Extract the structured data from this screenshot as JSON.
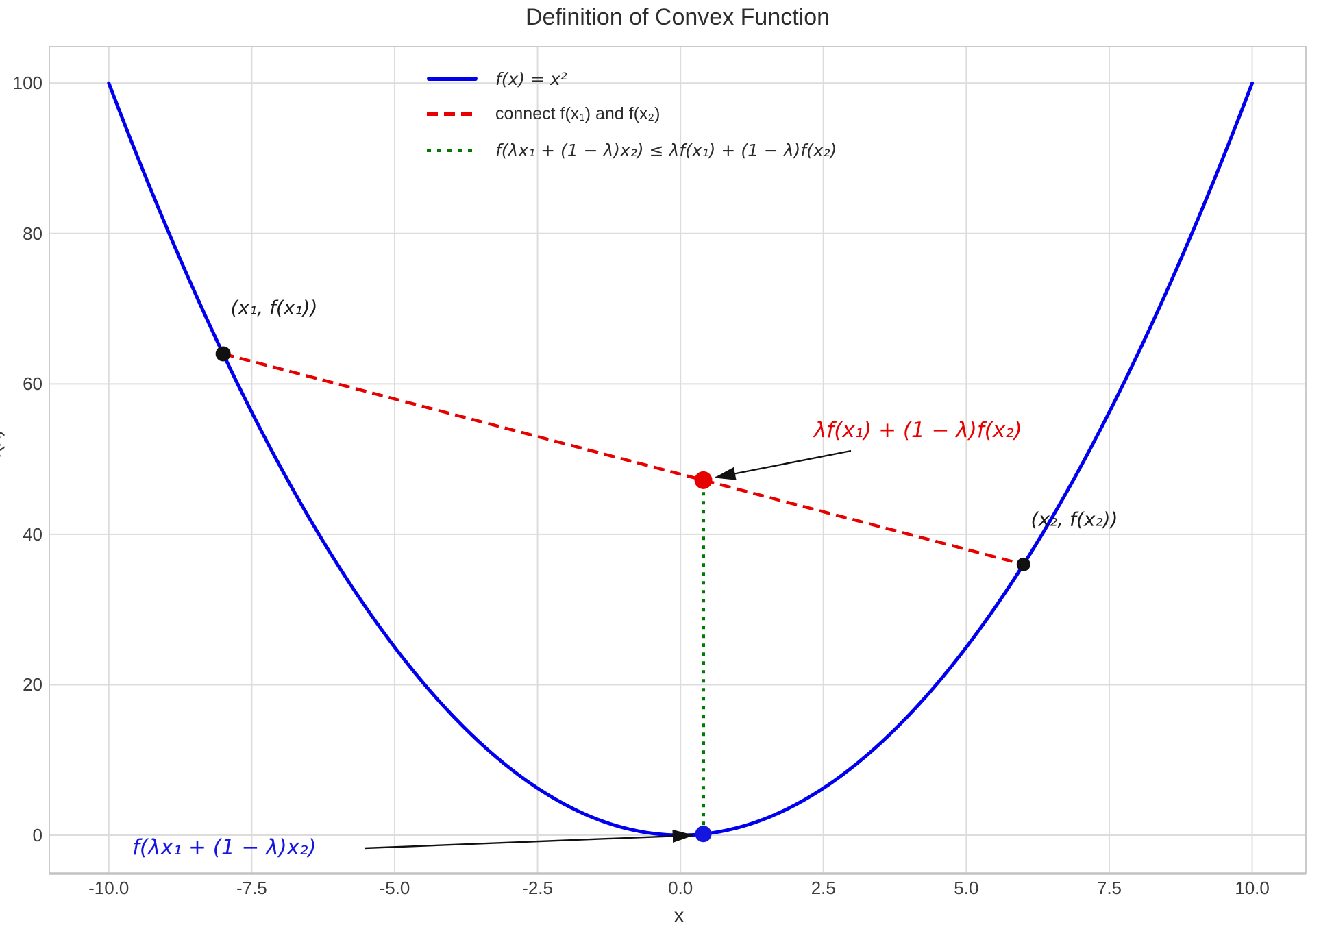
{
  "chart_data": {
    "type": "line",
    "title": "Definition of Convex Function",
    "xlabel": "x",
    "ylabel": "f(x)",
    "xlim": [
      -11.04,
      10.94
    ],
    "ylim": [
      -5.1,
      104.85
    ],
    "grid": true,
    "legend": {
      "position": "upper center",
      "frame": false
    },
    "x_ticks": [
      -10,
      -7.5,
      -5,
      -2.5,
      0,
      2.5,
      5,
      7.5,
      10
    ],
    "x_tick_labels": [
      "-10.0",
      "-7.5",
      "-5.0",
      "-2.5",
      "0.0",
      "2.5",
      "5.0",
      "7.5",
      "10.0"
    ],
    "y_ticks": [
      0,
      20,
      40,
      60,
      80,
      100
    ],
    "y_tick_labels": [
      "0",
      "20",
      "40",
      "60",
      "80",
      "100"
    ],
    "series": [
      {
        "name": "convex-curve",
        "label": "f(x) = x²",
        "style": "solid",
        "color": "#0000ee",
        "width": 5,
        "formula": "x²",
        "x_start": -10,
        "x_end": 10
      },
      {
        "name": "chord",
        "label": "connect f(x₁) and f(x₂)",
        "style": "dashed",
        "color": "#e60000",
        "width": 4.5,
        "points": [
          [
            -8,
            64
          ],
          [
            6,
            36
          ]
        ]
      },
      {
        "name": "inequality-segment",
        "label": "f(λx₁ + (1 − λ)x₂) ≤ λf(x₁) + (1 − λ)f(x₂)",
        "style": "dotted",
        "color": "#007a00",
        "width": 5,
        "points": [
          [
            0.4,
            0.16
          ],
          [
            0.4,
            47.2
          ]
        ]
      }
    ],
    "points": [
      {
        "name": "point-x1",
        "x": -8,
        "y": 64,
        "color": "#111111",
        "radius": 11
      },
      {
        "name": "point-x2",
        "x": 6,
        "y": 36,
        "color": "#111111",
        "radius": 10
      },
      {
        "name": "point-weighted-value",
        "x": 0.4,
        "y": 47.2,
        "color": "#e60000",
        "radius": 13
      },
      {
        "name": "point-function-value",
        "x": 0.4,
        "y": 0.16,
        "color": "#1515e0",
        "radius": 12
      }
    ],
    "annotations": [
      {
        "name": "label-x1",
        "text": "(x₁, f(x₁))",
        "color": "#1c1c1c"
      },
      {
        "name": "label-x2",
        "text": "(x₂, f(x₂))",
        "color": "#1c1c1c"
      },
      {
        "name": "label-weighted-value",
        "text": "λf(x₁) + (1 − λ)f(x₂)",
        "color": "#e60000",
        "arrow_to": {
          "x": 0.4,
          "y": 47.2
        }
      },
      {
        "name": "label-function-value",
        "text": "f(λx₁ + (1 − λ)x₂)",
        "color": "#1515e0",
        "arrow_to": {
          "x": 0.4,
          "y": 0.16
        }
      }
    ]
  }
}
